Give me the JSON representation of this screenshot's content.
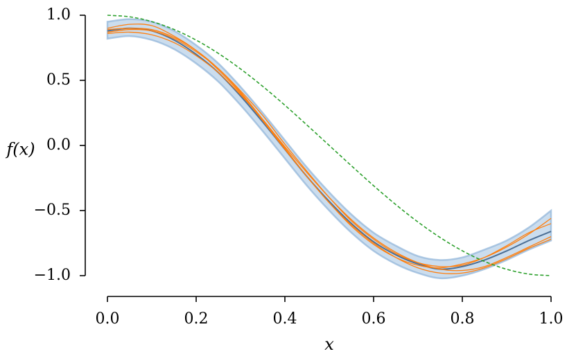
{
  "chart_data": {
    "type": "line",
    "title": "",
    "xlabel": "x",
    "ylabel": "f(x)",
    "xlim": [
      0.0,
      1.0
    ],
    "ylim": [
      -1.0,
      1.0
    ],
    "x_ticks": [
      "0.0",
      "0.2",
      "0.4",
      "0.6",
      "0.8",
      "1.0"
    ],
    "y_ticks": [
      "1.0",
      "0.5",
      "0.0",
      "−0.5",
      "−1.0"
    ],
    "grid": false,
    "legend": "none",
    "colors": {
      "band": "#a9c6e2",
      "band_edge": "#8fb3d9",
      "mean": "#4c6f95",
      "samples": "#ff7f0e",
      "truth": "#2ca02c"
    },
    "x": [
      0.0,
      0.05,
      0.1,
      0.15,
      0.2,
      0.25,
      0.3,
      0.35,
      0.4,
      0.45,
      0.5,
      0.55,
      0.6,
      0.65,
      0.7,
      0.75,
      0.8,
      0.85,
      0.9,
      0.95,
      1.0
    ],
    "band": {
      "lower": [
        0.82,
        0.84,
        0.81,
        0.74,
        0.63,
        0.49,
        0.31,
        0.11,
        -0.1,
        -0.31,
        -0.5,
        -0.67,
        -0.81,
        -0.91,
        -0.98,
        -1.02,
        -1.0,
        -0.95,
        -0.88,
        -0.8,
        -0.73
      ],
      "upper": [
        0.95,
        0.97,
        0.95,
        0.88,
        0.77,
        0.63,
        0.45,
        0.25,
        0.04,
        -0.17,
        -0.36,
        -0.53,
        -0.67,
        -0.77,
        -0.85,
        -0.88,
        -0.86,
        -0.8,
        -0.73,
        -0.63,
        -0.5
      ]
    },
    "series": [
      {
        "role": "mean",
        "values": [
          0.88,
          0.9,
          0.88,
          0.81,
          0.7,
          0.56,
          0.38,
          0.18,
          -0.03,
          -0.24,
          -0.43,
          -0.6,
          -0.74,
          -0.84,
          -0.91,
          -0.95,
          -0.93,
          -0.88,
          -0.81,
          -0.73,
          -0.66
        ]
      },
      {
        "role": "sample",
        "values": [
          0.89,
          0.9,
          0.89,
          0.83,
          0.73,
          0.59,
          0.41,
          0.2,
          -0.02,
          -0.24,
          -0.44,
          -0.62,
          -0.76,
          -0.86,
          -0.92,
          -0.94,
          -0.91,
          -0.86,
          -0.78,
          -0.68,
          -0.56
        ]
      },
      {
        "role": "sample",
        "values": [
          0.86,
          0.87,
          0.85,
          0.79,
          0.69,
          0.56,
          0.39,
          0.2,
          -0.01,
          -0.21,
          -0.4,
          -0.57,
          -0.71,
          -0.82,
          -0.9,
          -0.95,
          -0.96,
          -0.93,
          -0.86,
          -0.78,
          -0.7
        ]
      },
      {
        "role": "sample",
        "values": [
          0.9,
          0.93,
          0.92,
          0.84,
          0.73,
          0.58,
          0.4,
          0.19,
          -0.03,
          -0.24,
          -0.44,
          -0.61,
          -0.75,
          -0.86,
          -0.94,
          -0.98,
          -0.98,
          -0.94,
          -0.87,
          -0.79,
          -0.72
        ]
      },
      {
        "role": "sample",
        "values": [
          0.87,
          0.89,
          0.88,
          0.82,
          0.72,
          0.59,
          0.42,
          0.23,
          0.01,
          -0.2,
          -0.4,
          -0.58,
          -0.72,
          -0.83,
          -0.9,
          -0.93,
          -0.92,
          -0.86,
          -0.77,
          -0.67,
          -0.6
        ]
      },
      {
        "role": "truth",
        "values": [
          1.0,
          0.988,
          0.951,
          0.891,
          0.809,
          0.707,
          0.588,
          0.454,
          0.309,
          0.156,
          0.0,
          -0.156,
          -0.309,
          -0.454,
          -0.588,
          -0.707,
          -0.809,
          -0.891,
          -0.951,
          -0.988,
          -1.0
        ]
      }
    ]
  }
}
